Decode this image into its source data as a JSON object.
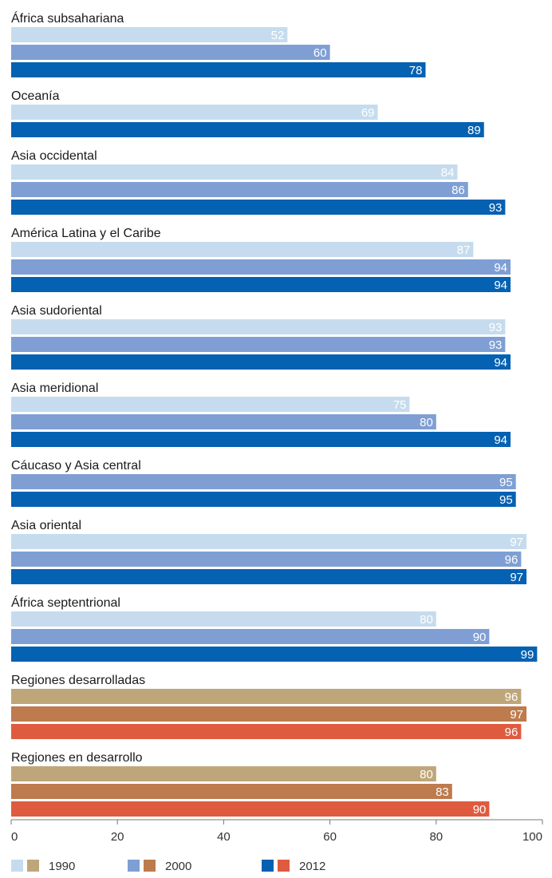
{
  "chart_data": {
    "type": "bar",
    "orientation": "horizontal",
    "title": "",
    "xlabel": "",
    "ylabel": "",
    "xlim": [
      0,
      100
    ],
    "xticks": [
      0,
      20,
      40,
      60,
      80,
      100
    ],
    "grid": false,
    "legend_position": "bottom",
    "legend": [
      {
        "name": "1990",
        "colors": [
          "#c6dcee",
          "#bfa67a"
        ]
      },
      {
        "name": "2000",
        "colors": [
          "#7f9fd4",
          "#bd7b4e"
        ]
      },
      {
        "name": "2012",
        "colors": [
          "#0561b2",
          "#df5b40"
        ]
      }
    ],
    "groups": [
      {
        "name": "África subsahariana",
        "palette": "blue",
        "bars": [
          {
            "series": "1990",
            "value": 52
          },
          {
            "series": "2000",
            "value": 60
          },
          {
            "series": "2012",
            "value": 78
          }
        ]
      },
      {
        "name": "Oceanía",
        "palette": "blue",
        "bars": [
          {
            "series": "1990",
            "value": 69
          },
          {
            "series": "2012",
            "value": 89
          }
        ]
      },
      {
        "name": "Asia occidental",
        "palette": "blue",
        "bars": [
          {
            "series": "1990",
            "value": 84
          },
          {
            "series": "2000",
            "value": 86
          },
          {
            "series": "2012",
            "value": 93
          }
        ]
      },
      {
        "name": "América Latina y el Caribe",
        "palette": "blue",
        "bars": [
          {
            "series": "1990",
            "value": 87
          },
          {
            "series": "2000",
            "value": 94
          },
          {
            "series": "2012",
            "value": 94
          }
        ]
      },
      {
        "name": "Asia sudoriental",
        "palette": "blue",
        "bars": [
          {
            "series": "1990",
            "value": 93
          },
          {
            "series": "2000",
            "value": 93
          },
          {
            "series": "2012",
            "value": 94
          }
        ]
      },
      {
        "name": "Asia meridional",
        "palette": "blue",
        "bars": [
          {
            "series": "1990",
            "value": 75
          },
          {
            "series": "2000",
            "value": 80
          },
          {
            "series": "2012",
            "value": 94
          }
        ]
      },
      {
        "name": "Cáucaso y Asia central",
        "palette": "blue",
        "bars": [
          {
            "series": "2000",
            "value": 95
          },
          {
            "series": "2012",
            "value": 95
          }
        ]
      },
      {
        "name": "Asia oriental",
        "palette": "blue",
        "bars": [
          {
            "series": "1990",
            "value": 97
          },
          {
            "series": "2000",
            "value": 96
          },
          {
            "series": "2012",
            "value": 97
          }
        ]
      },
      {
        "name": "África septentrional",
        "palette": "blue",
        "bars": [
          {
            "series": "1990",
            "value": 80
          },
          {
            "series": "2000",
            "value": 90
          },
          {
            "series": "2012",
            "value": 99
          }
        ]
      },
      {
        "name": "Regiones desarrolladas",
        "palette": "warm",
        "bars": [
          {
            "series": "1990",
            "value": 96
          },
          {
            "series": "2000",
            "value": 97
          },
          {
            "series": "2012",
            "value": 96
          }
        ]
      },
      {
        "name": "Regiones en desarrollo",
        "palette": "warm",
        "bars": [
          {
            "series": "1990",
            "value": 80
          },
          {
            "series": "2000",
            "value": 83
          },
          {
            "series": "2012",
            "value": 90
          }
        ]
      }
    ]
  },
  "colors": {
    "blue": {
      "1990": "#c6dcee",
      "2000": "#7f9fd4",
      "2012": "#0561b2"
    },
    "warm": {
      "1990": "#bfa67a",
      "2000": "#bd7b4e",
      "2012": "#df5b40"
    },
    "axis": "#777777"
  }
}
